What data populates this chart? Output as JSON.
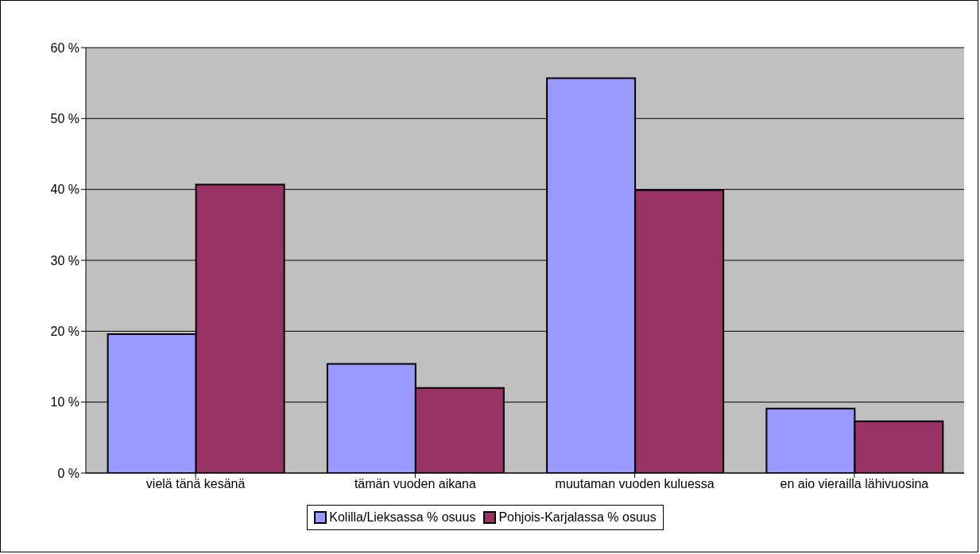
{
  "chart_data": {
    "type": "bar",
    "categories": [
      "vielä tänä kesänä",
      "tämän vuoden aikana",
      "muutaman vuoden kuluessa",
      "en aio vierailla lähivuosina"
    ],
    "series": [
      {
        "name": "Kolilla/Lieksassa % osuus",
        "color": "#9999ff",
        "values": [
          19.6,
          15.4,
          55.7,
          9.1
        ]
      },
      {
        "name": "Pohjois-Karjalassa % osuus",
        "color": "#993366",
        "values": [
          40.7,
          12.0,
          39.9,
          7.3
        ]
      }
    ],
    "ylim": [
      0,
      60
    ],
    "yticks": [
      {
        "value": 0,
        "label": "0 %"
      },
      {
        "value": 10,
        "label": "10 %"
      },
      {
        "value": 20,
        "label": "20 %"
      },
      {
        "value": 30,
        "label": "30 %"
      },
      {
        "value": 40,
        "label": "40 %"
      },
      {
        "value": 50,
        "label": "50 %"
      },
      {
        "value": 60,
        "label": "60 %"
      }
    ],
    "grid": "y",
    "legend": "bottom"
  }
}
